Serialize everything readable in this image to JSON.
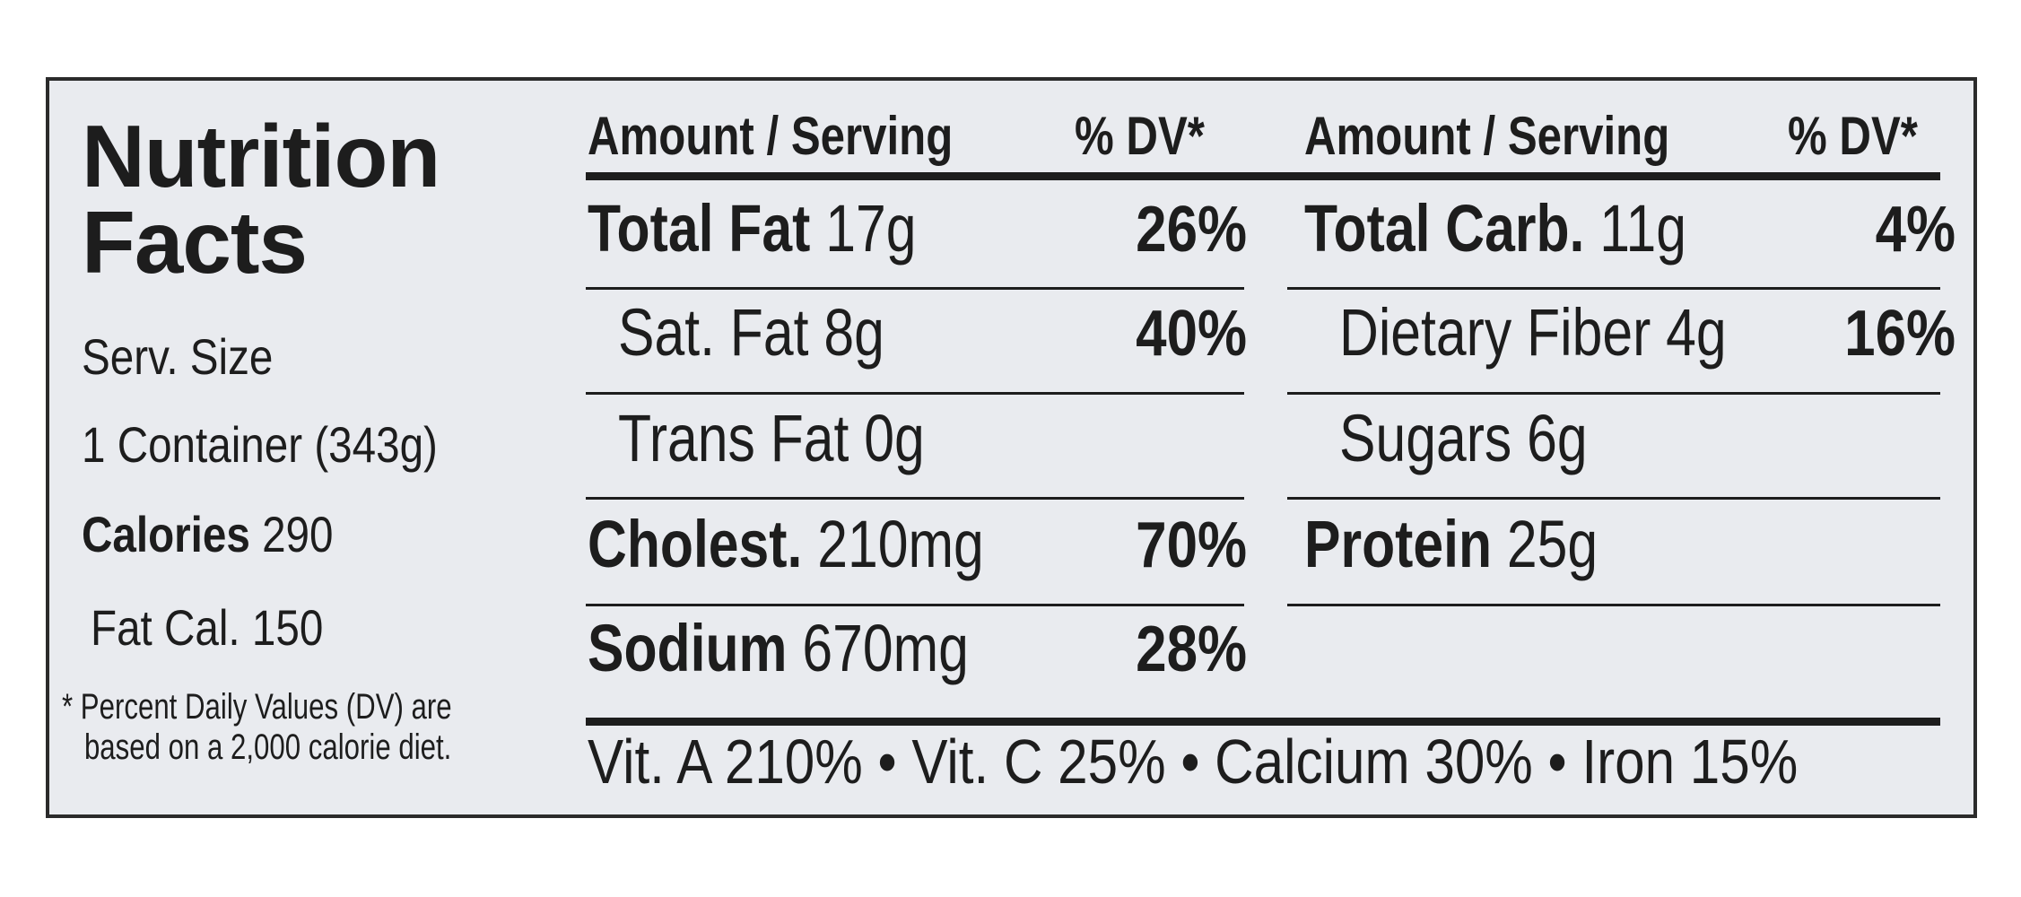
{
  "title_line1": "Nutrition",
  "title_line2": "Facts",
  "serving_label": "Serv. Size",
  "serving_value": "1 Container (343g)",
  "calories_label": "Calories",
  "calories_value": "290",
  "fat_cal": "Fat Cal. 150",
  "footnote_line1": "* Percent Daily Values (DV) are",
  "footnote_line2": "based on a 2,000 calorie diet.",
  "headers": {
    "amount": "Amount / Serving",
    "dv": "% DV*"
  },
  "left_rows": [
    {
      "label": "Total Fat",
      "amount": "17g",
      "dv": "26%"
    },
    {
      "label": "Sat. Fat",
      "amount": "8g",
      "dv": "40%"
    },
    {
      "label": "Trans Fat",
      "amount": "0g",
      "dv": ""
    },
    {
      "label": "Cholest.",
      "amount": "210mg",
      "dv": "70%"
    },
    {
      "label": "Sodium",
      "amount": "670mg",
      "dv": "28%"
    }
  ],
  "right_rows": [
    {
      "label": "Total Carb.",
      "amount": "11g",
      "dv": "4%"
    },
    {
      "label": "Dietary Fiber",
      "amount": "4g",
      "dv": "16%"
    },
    {
      "label": "Sugars",
      "amount": "6g",
      "dv": ""
    },
    {
      "label": "Protein",
      "amount": "25g",
      "dv": ""
    }
  ],
  "vitamins": "Vit. A 210% • Vit. C 25% • Calcium 30% • Iron 15%"
}
